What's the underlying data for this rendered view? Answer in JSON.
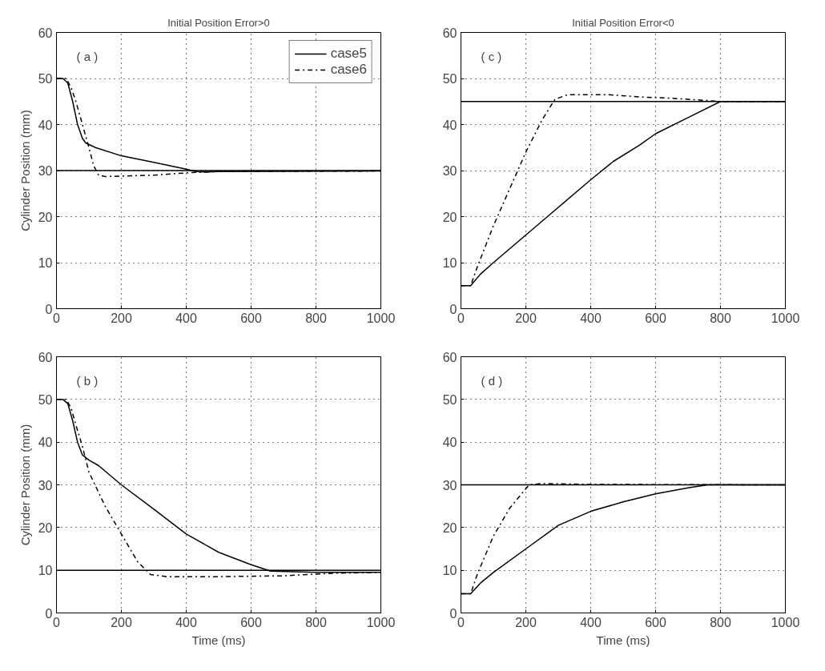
{
  "chart_data": [
    {
      "type": "line",
      "title": "Initial Position Error>0",
      "ylabel": "Cylinder Position (mm)",
      "annotations": [
        "( a )"
      ],
      "xlim": [
        0,
        1000
      ],
      "ylim": [
        0,
        60
      ],
      "xticks": [
        0,
        200,
        400,
        600,
        800,
        1000
      ],
      "yticks": [
        0,
        10,
        20,
        30,
        40,
        50,
        60
      ],
      "grid": true,
      "legend": "top right",
      "marker": "none",
      "ref_lines": [
        {
          "axis": "y",
          "value": 30,
          "color": "#000000",
          "line_style": "solid"
        }
      ],
      "series": [
        {
          "name": "case5",
          "color": "#000000",
          "line_style": "solid",
          "x": [
            0,
            20,
            35,
            50,
            65,
            80,
            90,
            120,
            200,
            300,
            400,
            430,
            460,
            500,
            1000
          ],
          "values": [
            50,
            50,
            49,
            45,
            40,
            37,
            36,
            35,
            33.2,
            31.8,
            30.3,
            29.8,
            29.7,
            29.8,
            29.9
          ]
        },
        {
          "name": "case6",
          "color": "#000000",
          "line_style": "dashdot",
          "x": [
            0,
            30,
            45,
            60,
            80,
            100,
            115,
            130,
            150,
            200,
            300,
            400,
            500,
            560,
            1000
          ],
          "values": [
            50,
            50,
            48,
            45,
            40,
            35,
            31,
            29,
            28.7,
            28.8,
            29,
            29.5,
            29.8,
            29.8,
            29.9
          ]
        }
      ]
    },
    {
      "type": "line",
      "title": "Initial Position Error<0",
      "annotations": [
        "( c )"
      ],
      "xlim": [
        0,
        1000
      ],
      "ylim": [
        0,
        60
      ],
      "xticks": [
        0,
        200,
        400,
        600,
        800,
        1000
      ],
      "yticks": [
        0,
        10,
        20,
        30,
        40,
        50,
        60
      ],
      "grid": true,
      "marker": "none",
      "ref_lines": [
        {
          "axis": "y",
          "value": 45,
          "color": "#000000",
          "line_style": "solid"
        }
      ],
      "series": [
        {
          "color": "#000000",
          "line_style": "solid",
          "x": [
            0,
            30,
            60,
            100,
            200,
            300,
            400,
            470,
            550,
            600,
            700,
            800,
            1000
          ],
          "values": [
            5,
            5,
            7.5,
            10,
            16,
            22,
            28,
            32,
            35.5,
            38,
            41.5,
            45,
            45
          ]
        },
        {
          "color": "#000000",
          "line_style": "dashdot",
          "x": [
            0,
            30,
            50,
            100,
            150,
            200,
            250,
            290,
            330,
            450,
            550,
            650,
            760,
            800,
            1000
          ],
          "values": [
            5,
            5,
            9,
            18,
            26,
            34,
            41,
            45.5,
            46.5,
            46.5,
            46,
            45.7,
            45.2,
            45,
            45
          ]
        }
      ]
    },
    {
      "type": "line",
      "xlabel": "Time (ms)",
      "ylabel": "Cylinder Position (mm)",
      "annotations": [
        "( b )"
      ],
      "xlim": [
        0,
        1000
      ],
      "ylim": [
        0,
        60
      ],
      "xticks": [
        0,
        200,
        400,
        600,
        800,
        1000
      ],
      "yticks": [
        0,
        10,
        20,
        30,
        40,
        50,
        60
      ],
      "grid": true,
      "marker": "none",
      "ref_lines": [
        {
          "axis": "y",
          "value": 10,
          "color": "#000000",
          "line_style": "solid"
        }
      ],
      "series": [
        {
          "color": "#000000",
          "line_style": "solid",
          "x": [
            0,
            20,
            35,
            50,
            65,
            80,
            100,
            130,
            200,
            300,
            400,
            500,
            600,
            660,
            800,
            1000
          ],
          "values": [
            50,
            50,
            49,
            45,
            40,
            37,
            35.8,
            34.5,
            30,
            24.3,
            18.5,
            14.2,
            11.3,
            9.8,
            9.5,
            9.5
          ]
        },
        {
          "color": "#000000",
          "line_style": "dashdot",
          "x": [
            0,
            30,
            45,
            60,
            80,
            100,
            150,
            200,
            250,
            290,
            340,
            500,
            700,
            850,
            1000
          ],
          "values": [
            50,
            50,
            48,
            44,
            39,
            33,
            25,
            18.5,
            12,
            9,
            8.5,
            8.5,
            8.7,
            9.3,
            9.5
          ]
        }
      ]
    },
    {
      "type": "line",
      "xlabel": "Time (ms)",
      "annotations": [
        "( d )"
      ],
      "xlim": [
        0,
        1000
      ],
      "ylim": [
        0,
        60
      ],
      "xticks": [
        0,
        200,
        400,
        600,
        800,
        1000
      ],
      "yticks": [
        0,
        10,
        20,
        30,
        40,
        50,
        60
      ],
      "grid": true,
      "marker": "none",
      "ref_lines": [
        {
          "axis": "y",
          "value": 30,
          "color": "#000000",
          "line_style": "solid"
        }
      ],
      "series": [
        {
          "color": "#000000",
          "line_style": "solid",
          "x": [
            0,
            30,
            60,
            100,
            200,
            300,
            400,
            500,
            600,
            700,
            760,
            1000
          ],
          "values": [
            4.5,
            4.5,
            7,
            9.5,
            15,
            20.5,
            23.8,
            26,
            27.9,
            29.3,
            30,
            30
          ]
        },
        {
          "color": "#000000",
          "line_style": "dashdot",
          "x": [
            0,
            30,
            50,
            100,
            150,
            210,
            250,
            400,
            1000
          ],
          "values": [
            4.5,
            4.5,
            9,
            18,
            24.5,
            30,
            30.3,
            30.1,
            30
          ]
        }
      ]
    }
  ]
}
